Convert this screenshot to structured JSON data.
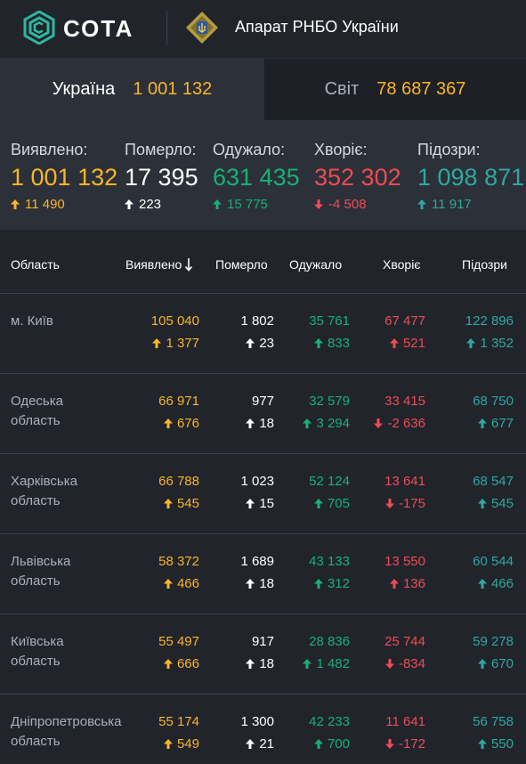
{
  "header": {
    "brand": "СОТА",
    "organization": "Апарат РНБО України"
  },
  "tabs": [
    {
      "label": "Україна",
      "value": "1 001 132",
      "active": true
    },
    {
      "label": "Світ",
      "value": "78 687 367",
      "active": false
    }
  ],
  "summary": [
    {
      "label": "Виявлено:",
      "value": "1 001 132",
      "delta": "11 490",
      "direction": "up",
      "color": "#f9b528"
    },
    {
      "label": "Померло:",
      "value": "17 395",
      "delta": "223",
      "direction": "up",
      "color": "#ffffff"
    },
    {
      "label": "Одужало:",
      "value": "631 435",
      "delta": "15 775",
      "direction": "up",
      "color": "#17b079"
    },
    {
      "label": "Хворіє:",
      "value": "352 302",
      "delta": "-4 508",
      "direction": "down",
      "color": "#ef4b55"
    },
    {
      "label": "Підозри:",
      "value": "1 098 871",
      "delta": "11 917",
      "direction": "up",
      "color": "#2fa8a0"
    }
  ],
  "table": {
    "headers": {
      "region": "Область",
      "detected": "Виявлено",
      "sort_icon": "arrow-down-icon",
      "deaths": "Померло",
      "recovered": "Одужало",
      "sick": "Хворіє",
      "suspected": "Підозри"
    },
    "rows": [
      {
        "region": "м. Київ",
        "detected": "105 040",
        "detected_delta": "1 377",
        "detected_dir": "up",
        "deaths": "1 802",
        "deaths_delta": "23",
        "deaths_dir": "up",
        "recovered": "35 761",
        "recovered_delta": "833",
        "recovered_dir": "up",
        "sick": "67 477",
        "sick_delta": "521",
        "sick_dir": "up",
        "suspected": "122 896",
        "suspected_delta": "1 352",
        "suspected_dir": "up"
      },
      {
        "region": "Одеська область",
        "detected": "66 971",
        "detected_delta": "676",
        "detected_dir": "up",
        "deaths": "977",
        "deaths_delta": "18",
        "deaths_dir": "up",
        "recovered": "32 579",
        "recovered_delta": "3 294",
        "recovered_dir": "up",
        "sick": "33 415",
        "sick_delta": "-2 636",
        "sick_dir": "down",
        "suspected": "68 750",
        "suspected_delta": "677",
        "suspected_dir": "up"
      },
      {
        "region": "Харківська область",
        "detected": "66 788",
        "detected_delta": "545",
        "detected_dir": "up",
        "deaths": "1 023",
        "deaths_delta": "15",
        "deaths_dir": "up",
        "recovered": "52 124",
        "recovered_delta": "705",
        "recovered_dir": "up",
        "sick": "13 641",
        "sick_delta": "-175",
        "sick_dir": "down",
        "suspected": "68 547",
        "suspected_delta": "545",
        "suspected_dir": "up"
      },
      {
        "region": "Львівська область",
        "detected": "58 372",
        "detected_delta": "466",
        "detected_dir": "up",
        "deaths": "1 689",
        "deaths_delta": "18",
        "deaths_dir": "up",
        "recovered": "43 133",
        "recovered_delta": "312",
        "recovered_dir": "up",
        "sick": "13 550",
        "sick_delta": "136",
        "sick_dir": "up",
        "suspected": "60 544",
        "suspected_delta": "466",
        "suspected_dir": "up"
      },
      {
        "region": "Київська область",
        "detected": "55 497",
        "detected_delta": "666",
        "detected_dir": "up",
        "deaths": "917",
        "deaths_delta": "18",
        "deaths_dir": "up",
        "recovered": "28 836",
        "recovered_delta": "1 482",
        "recovered_dir": "up",
        "sick": "25 744",
        "sick_delta": "-834",
        "sick_dir": "down",
        "suspected": "59 278",
        "suspected_delta": "670",
        "suspected_dir": "up"
      },
      {
        "region": "Дніпропетровська область",
        "detected": "55 174",
        "detected_delta": "549",
        "detected_dir": "up",
        "deaths": "1 300",
        "deaths_delta": "21",
        "deaths_dir": "up",
        "recovered": "42 233",
        "recovered_delta": "700",
        "recovered_dir": "up",
        "sick": "11 641",
        "sick_delta": "-172",
        "sick_dir": "down",
        "suspected": "56 758",
        "suspected_delta": "550",
        "suspected_dir": "up"
      }
    ]
  },
  "colors": {
    "detected": "#f9b528",
    "deaths": "#ffffff",
    "recovered": "#17b079",
    "sick": "#ef4b55",
    "suspected": "#2fa8a0"
  }
}
